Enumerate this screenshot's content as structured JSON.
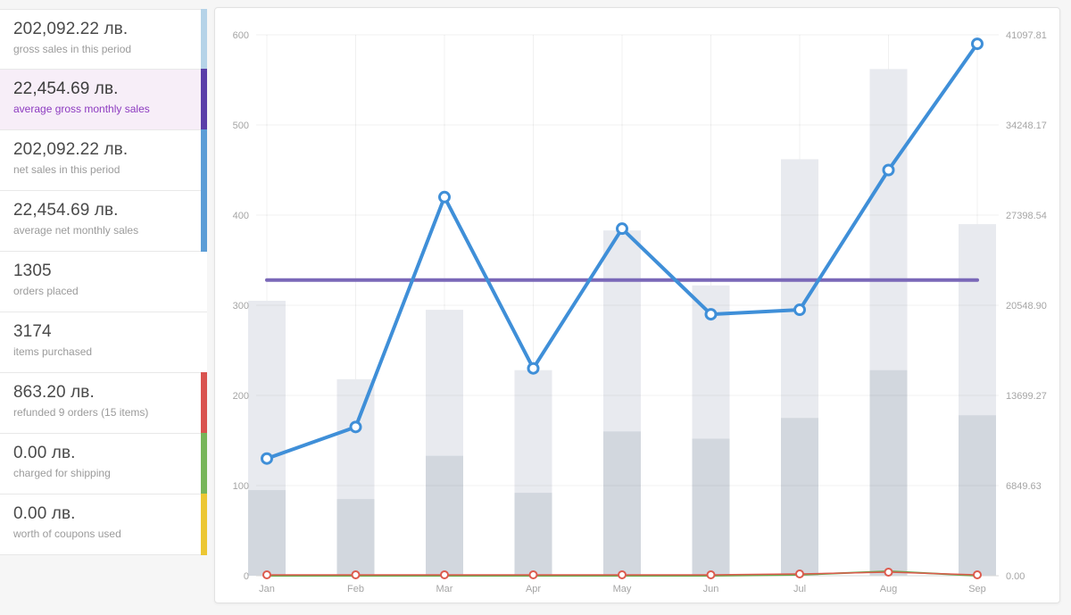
{
  "theme": {
    "page_bg": "#f6f6f6",
    "panel_bg": "#ffffff",
    "panel_border": "#e2e2e2",
    "card_border": "#e8e8e8",
    "value_color": "#4a4a4a",
    "label_color": "#9b9b9b",
    "highlight_bg": "#f7eef8",
    "highlight_label": "#8d3bc0",
    "axis_text": "#a5a5a5"
  },
  "sidebar": {
    "cards": [
      {
        "value": "202,092.22 лв.",
        "label": "gross sales in this period",
        "accent": "#b5d3e8"
      },
      {
        "value": "22,454.69 лв.",
        "label": "average gross monthly sales",
        "accent": "#5a3fa8",
        "selected": true
      },
      {
        "value": "202,092.22 лв.",
        "label": "net sales in this period",
        "accent": "#5c9dd6"
      },
      {
        "value": "22,454.69 лв.",
        "label": "average net monthly sales",
        "accent": "#5c9dd6"
      },
      {
        "value": "1305",
        "label": "orders placed",
        "accent": "transparent"
      },
      {
        "value": "3174",
        "label": "items purchased",
        "accent": "transparent"
      },
      {
        "value": "863.20 лв.",
        "label": "refunded 9 orders (15 items)",
        "accent": "#d9534f"
      },
      {
        "value": "0.00 лв.",
        "label": "charged for shipping",
        "accent": "#77b55a"
      },
      {
        "value": "0.00 лв.",
        "label": "worth of coupons used",
        "accent": "#ecc734"
      }
    ]
  },
  "chart_data": {
    "type": "combo",
    "x_categories": [
      "Jan",
      "Feb",
      "Mar",
      "Apr",
      "May",
      "Jun",
      "Jul",
      "Aug",
      "Sep"
    ],
    "left_axis": {
      "ticks": [
        0,
        100,
        200,
        300,
        400,
        500,
        600
      ],
      "max": 600
    },
    "right_axis": {
      "tick_labels": [
        "0.00",
        "6849.63",
        "13699.27",
        "20548.90",
        "27398.54",
        "34248.17",
        "41097.81"
      ]
    },
    "grid": true,
    "legend": "none",
    "series": [
      {
        "id": "gross_sales_bars",
        "label": "gross sales",
        "type": "bar",
        "color": "#e8eaef",
        "values": [
          305,
          218,
          295,
          228,
          383,
          322,
          462,
          562,
          390
        ]
      },
      {
        "id": "orders_bars",
        "label": "orders placed",
        "type": "bar",
        "color": "#d2d7de",
        "values": [
          95,
          85,
          133,
          92,
          160,
          152,
          175,
          228,
          178
        ]
      },
      {
        "id": "average_line",
        "label": "average gross monthly sales",
        "type": "hline",
        "color": "#7a68b8",
        "value": 328,
        "width": 4
      },
      {
        "id": "shipping_line",
        "label": "charged for shipping",
        "type": "line",
        "color": "#6aa84f",
        "values": [
          0,
          0,
          0,
          0,
          0,
          0,
          1,
          5,
          0
        ],
        "width": 2,
        "marker": false
      },
      {
        "id": "refunds_line",
        "label": "refunds",
        "type": "line",
        "color": "#dd5b4e",
        "values": [
          1,
          1,
          1,
          1,
          1,
          1,
          2,
          4,
          1
        ],
        "width": 1.5,
        "marker": true,
        "marker_r": 4,
        "marker_stroke": 2
      },
      {
        "id": "items_line",
        "label": "items purchased",
        "type": "line",
        "color": "#3f8fd8",
        "values": [
          130,
          165,
          420,
          230,
          385,
          290,
          295,
          450,
          590
        ],
        "width": 4,
        "marker": true,
        "marker_r": 5.5,
        "marker_stroke": 3
      }
    ]
  }
}
